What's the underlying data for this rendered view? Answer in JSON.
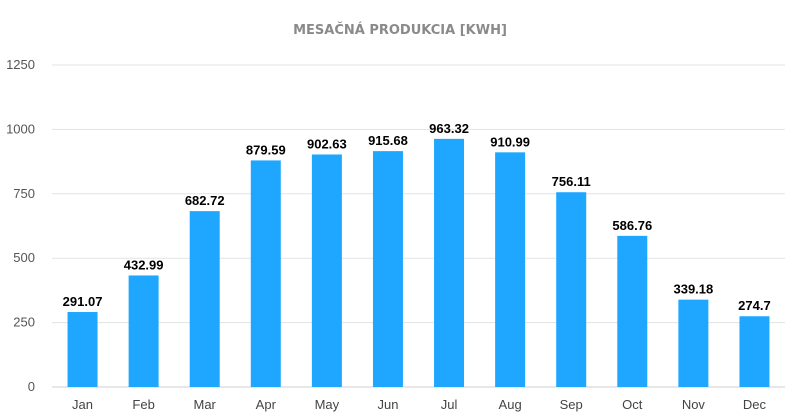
{
  "chart_data": {
    "type": "bar",
    "title": "MESAČNÁ PRODUKCIA [KWH]",
    "xlabel": "",
    "ylabel": "",
    "categories": [
      "Jan",
      "Feb",
      "Mar",
      "Apr",
      "May",
      "Jun",
      "Jul",
      "Aug",
      "Sep",
      "Oct",
      "Nov",
      "Dec"
    ],
    "values": [
      291.07,
      432.99,
      682.72,
      879.59,
      902.63,
      915.68,
      963.32,
      910.99,
      756.11,
      586.76,
      339.18,
      274.7
    ],
    "data_labels": [
      "291.07",
      "432.99",
      "682.72",
      "879.59",
      "902.63",
      "915.68",
      "963.32",
      "910.99",
      "756.11",
      "586.76",
      "339.18",
      "274.7"
    ],
    "yticks": [
      0,
      250,
      500,
      750,
      1000,
      1250
    ],
    "ylim": [
      0,
      1250
    ],
    "grid": true,
    "legend": "none",
    "bar_color": "#1fa7ff"
  }
}
